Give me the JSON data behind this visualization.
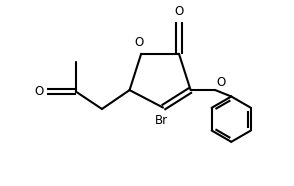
{
  "line_color": "#000000",
  "bg_color": "#ffffff",
  "line_width": 1.5,
  "font_size": 8.5,
  "figsize": [
    2.94,
    1.86
  ],
  "dpi": 100,
  "xlim": [
    0,
    10
  ],
  "ylim": [
    0,
    6.4
  ]
}
